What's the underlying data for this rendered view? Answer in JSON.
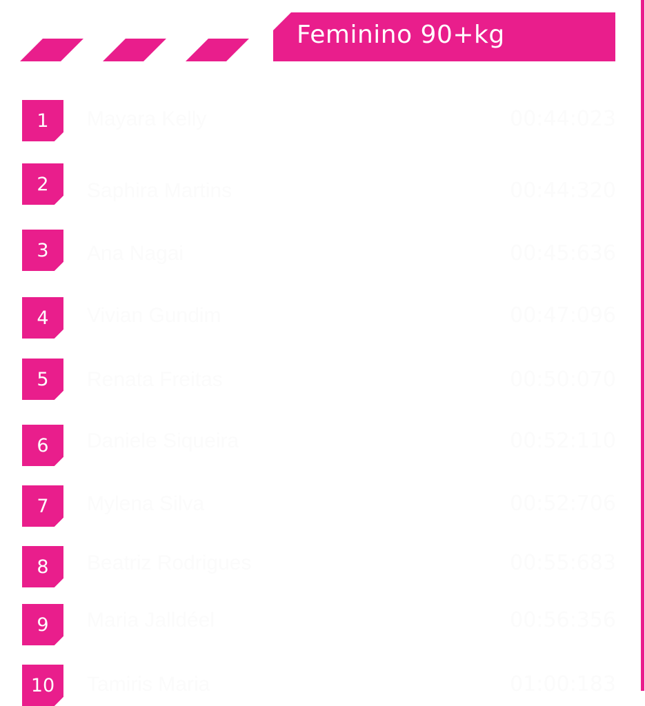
{
  "header": {
    "title": "Feminino 90+kg"
  },
  "colors": {
    "accent": "#e91e8c",
    "text": "#fbfbfb",
    "background": "#ffffff"
  },
  "ranking": [
    {
      "position": "1",
      "name": "Mayara Kelly",
      "time": "00:44:023"
    },
    {
      "position": "2",
      "name": "Saphira Martins",
      "time": "00:44:320"
    },
    {
      "position": "3",
      "name": "Ana Nagai",
      "time": "00:45:636"
    },
    {
      "position": "4",
      "name": "Vivian Gundim",
      "time": "00:47:096"
    },
    {
      "position": "5",
      "name": "Renata Freitas",
      "time": "00:50:070"
    },
    {
      "position": "6",
      "name": "Daniele Siqueira",
      "time": "00:52:110"
    },
    {
      "position": "7",
      "name": "Mylena Silva",
      "time": "00:52:706"
    },
    {
      "position": "8",
      "name": "Beatriz Rodrigues",
      "time": "00:55:683"
    },
    {
      "position": "9",
      "name": "Maria Jalldéel",
      "time": "00:56:356"
    },
    {
      "position": "10",
      "name": "Tamiris Maria",
      "time": "01:00:183"
    }
  ]
}
